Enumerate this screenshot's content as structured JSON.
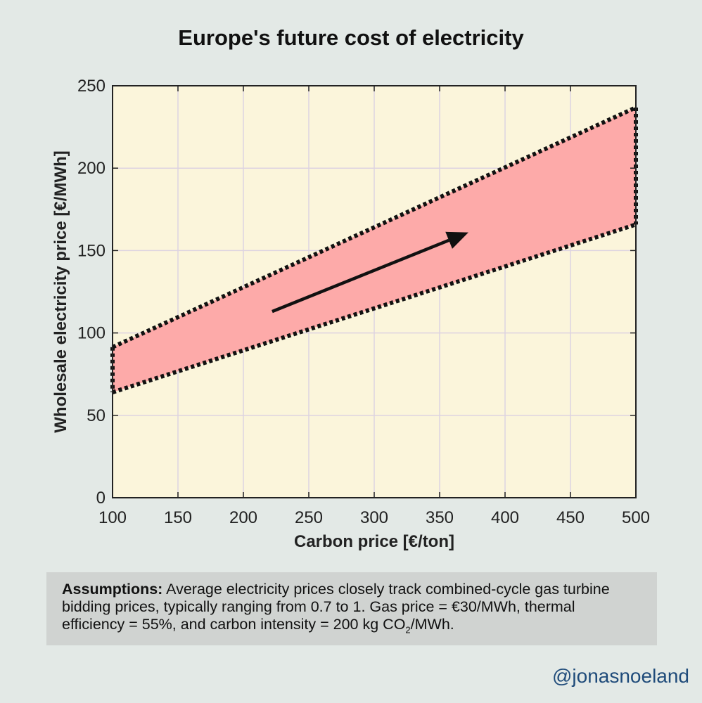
{
  "chart_data": {
    "type": "area",
    "title": "Europe's future cost of electricity",
    "xlabel": "Carbon price [€/ton]",
    "ylabel": "Wholesale electricity price [€/MWh]",
    "xlim": [
      100,
      500
    ],
    "ylim": [
      0,
      250
    ],
    "xticks": [
      "100",
      "150",
      "200",
      "250",
      "300",
      "350",
      "400",
      "450",
      "500"
    ],
    "yticks": [
      "0",
      "50",
      "100",
      "150",
      "200",
      "250"
    ],
    "grid": true,
    "band": {
      "x": [
        100,
        500
      ],
      "upper": [
        91.4,
        236.8
      ],
      "lower": [
        64,
        165.8
      ]
    },
    "arrow": {
      "from": [
        222,
        113
      ],
      "to": [
        372,
        161
      ]
    },
    "colors": {
      "plot_background": "#fbf5db",
      "band_fill": "#fdaaa9",
      "band_border": "#111111",
      "grid": "#ddd3e1"
    }
  },
  "assumptions": {
    "heading": "Assumptions:",
    "text_1": " Average electricity prices closely track combined-cycle gas turbine bidding prices, typically ranging from 0.7 to 1. Gas price = €30/MWh, thermal efficiency = 55%, and carbon intensity = 200 kg CO",
    "subscript": "2",
    "text_2": "/MWh."
  },
  "watermark": "@jonasnoeland"
}
